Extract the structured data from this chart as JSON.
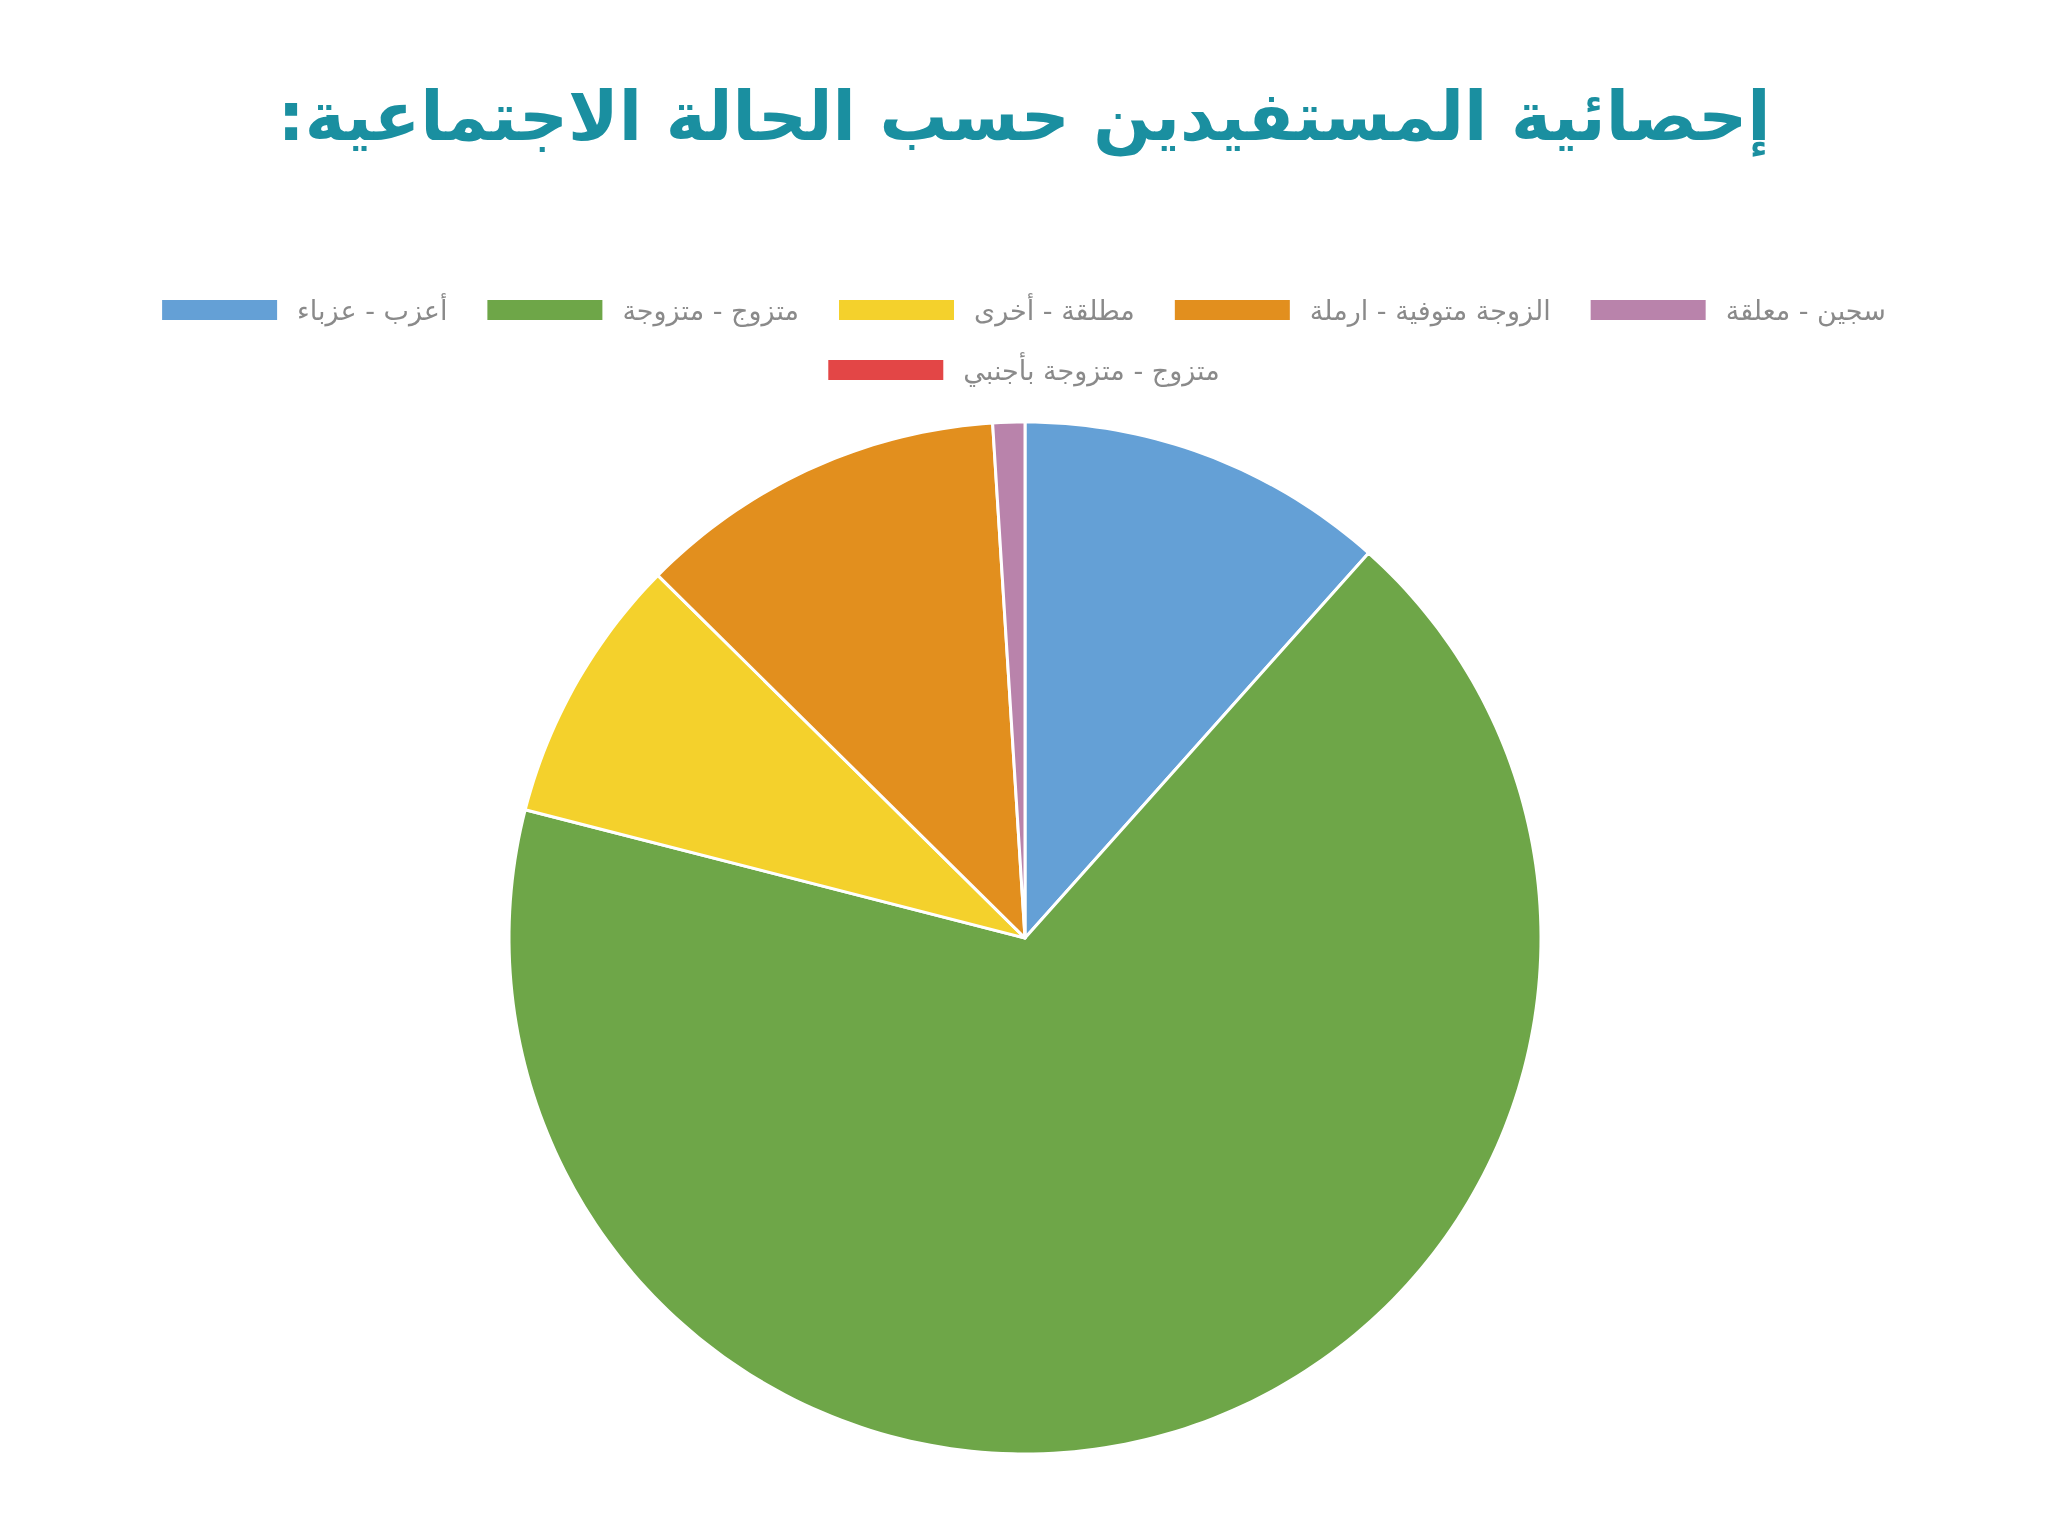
{
  "chart_data": {
    "type": "pie",
    "title": "إحصائية المستفيدين حسب الحالة الاجتماعية:",
    "categories": [
      "أعزب - عزباء",
      "متزوج - متزوجة",
      "مطلقة - أخرى",
      "الزوجة متوفية - ارملة",
      "سجين - معلقة",
      "متزوج - متزوجة بأجنبي"
    ],
    "values": [
      11.6,
      67.4,
      8.4,
      11.6,
      1.0,
      0
    ],
    "colors": [
      "#64a0d6",
      "#6ea648",
      "#f4d12c",
      "#e28f1e",
      "#b983ab",
      "#e34646"
    ],
    "legend": "top"
  }
}
